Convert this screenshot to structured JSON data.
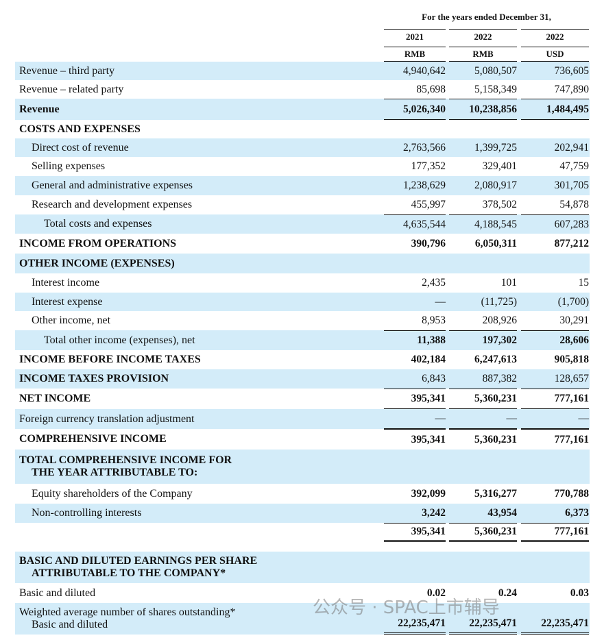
{
  "header": {
    "caption": "For the years ended December 31,",
    "years": [
      "2021",
      "2022",
      "2022"
    ],
    "currencies": [
      "RMB",
      "RMB",
      "USD"
    ]
  },
  "rows": [
    {
      "label": "Revenue – third party",
      "values": [
        "4,940,642",
        "5,080,507",
        "736,605"
      ]
    },
    {
      "label": "Revenue – related party",
      "values": [
        "85,698",
        "5,158,349",
        "747,890"
      ]
    },
    {
      "label": "Revenue",
      "values": [
        "5,026,340",
        "10,238,856",
        "1,484,495"
      ]
    },
    {
      "label": "COSTS AND EXPENSES"
    },
    {
      "label": "Direct cost of revenue",
      "values": [
        "2,763,566",
        "1,399,725",
        "202,941"
      ]
    },
    {
      "label": "Selling expenses",
      "values": [
        "177,352",
        "329,401",
        "47,759"
      ]
    },
    {
      "label": "General and administrative expenses",
      "values": [
        "1,238,629",
        "2,080,917",
        "301,705"
      ]
    },
    {
      "label": "Research and development expenses",
      "values": [
        "455,997",
        "378,502",
        "54,878"
      ]
    },
    {
      "label": "Total costs and expenses",
      "values": [
        "4,635,544",
        "4,188,545",
        "607,283"
      ]
    },
    {
      "label": "INCOME FROM OPERATIONS",
      "values": [
        "390,796",
        "6,050,311",
        "877,212"
      ]
    },
    {
      "label": "OTHER INCOME (EXPENSES)"
    },
    {
      "label": "Interest income",
      "values": [
        "2,435",
        "101",
        "15"
      ]
    },
    {
      "label": "Interest expense",
      "values": [
        "—",
        "(11,725)",
        "(1,700)"
      ]
    },
    {
      "label": "Other income, net",
      "values": [
        "8,953",
        "208,926",
        "30,291"
      ]
    },
    {
      "label": "Total other income (expenses), net",
      "values": [
        "11,388",
        "197,302",
        "28,606"
      ]
    },
    {
      "label": "INCOME BEFORE INCOME TAXES",
      "values": [
        "402,184",
        "6,247,613",
        "905,818"
      ]
    },
    {
      "label": "INCOME TAXES PROVISION",
      "values": [
        "6,843",
        "887,382",
        "128,657"
      ]
    },
    {
      "label": "NET INCOME",
      "values": [
        "395,341",
        "5,360,231",
        "777,161"
      ]
    },
    {
      "label": "Foreign currency translation adjustment",
      "values": [
        "—",
        "—",
        "—"
      ]
    },
    {
      "label": "COMPREHENSIVE INCOME",
      "values": [
        "395,341",
        "5,360,231",
        "777,161"
      ]
    },
    {
      "label": [
        "TOTAL COMPREHENSIVE INCOME FOR",
        "THE YEAR ATTRIBUTABLE TO:"
      ]
    },
    {
      "label": "Equity shareholders of the Company",
      "values": [
        "392,099",
        "5,316,277",
        "770,788"
      ]
    },
    {
      "label": "Non-controlling interests",
      "values": [
        "3,242",
        "43,954",
        "6,373"
      ]
    },
    {
      "values": [
        "395,341",
        "5,360,231",
        "777,161"
      ]
    },
    {
      "label": [
        "BASIC AND DILUTED EARNINGS PER SHARE",
        "ATTRIBUTABLE TO THE COMPANY*"
      ]
    },
    {
      "label": "Basic and diluted",
      "values": [
        "0.02",
        "0.24",
        "0.03"
      ]
    },
    {
      "label": [
        "Weighted average number of shares outstanding*",
        "Basic and diluted"
      ],
      "values": [
        "22,235,471",
        "22,235,471",
        "22,235,471"
      ]
    }
  ],
  "watermark": "公众号 · SPAC上市辅导"
}
